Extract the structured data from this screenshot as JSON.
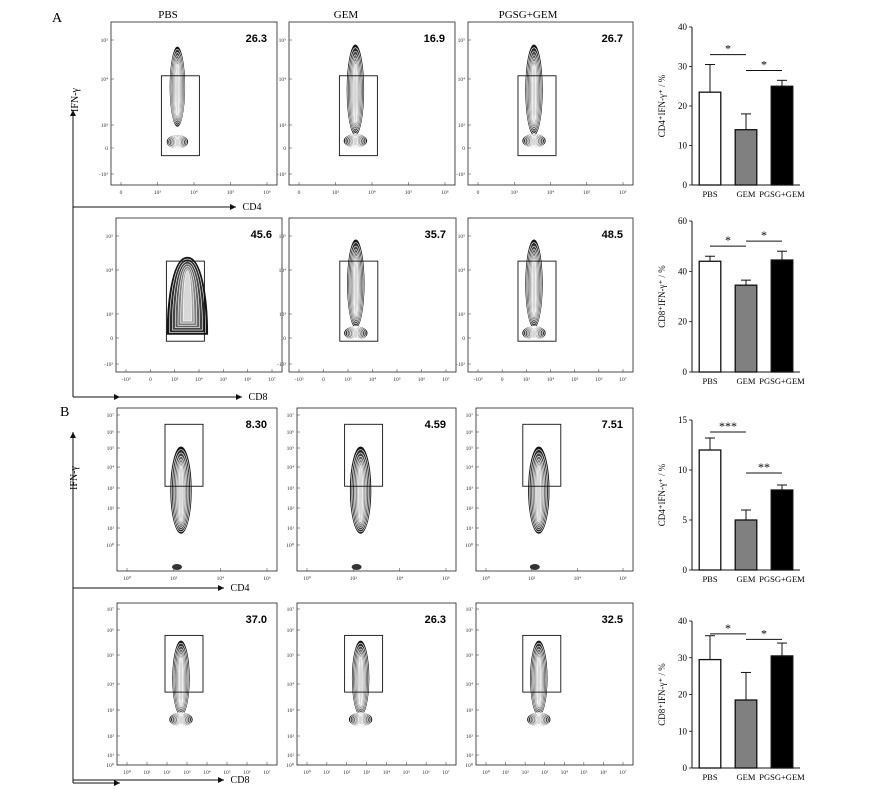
{
  "panels": [
    {
      "letter": "A",
      "columns": [
        "PBS",
        "GEM",
        "PGSG+GEM"
      ],
      "yaxis_label": "IFN-γ",
      "rows": [
        {
          "marker": "CD4",
          "y_ticks": [
            "10⁵",
            "10⁴",
            "10³",
            "0",
            "-10³"
          ],
          "x_ticks": [
            "0",
            "10³",
            "10⁴",
            "10⁵",
            "10⁶"
          ],
          "plots": [
            {
              "value": "26.3",
              "shape": "narrow"
            },
            {
              "value": "16.9",
              "shape": "column"
            },
            {
              "value": "26.7",
              "shape": "column"
            }
          ]
        },
        {
          "marker": "CD8",
          "y_ticks": [
            "10⁵",
            "10⁴",
            "10³",
            "0",
            "-10³"
          ],
          "x_ticks": [
            "-10³",
            "0",
            "10³",
            "10⁴",
            "10⁵",
            "10⁶",
            "10⁷"
          ],
          "plots": [
            {
              "value": "45.6",
              "shape": "broad"
            },
            {
              "value": "35.7",
              "shape": "column"
            },
            {
              "value": "48.5",
              "shape": "column"
            }
          ]
        }
      ]
    },
    {
      "letter": "B",
      "columns": [
        "",
        "",
        ""
      ],
      "yaxis_label": "IFN-γ",
      "rows": [
        {
          "marker": "CD4",
          "y_ticks": [
            "10⁷",
            "10⁶",
            "10⁵",
            "10⁴",
            "10³",
            "10²",
            "10¹",
            "10⁰"
          ],
          "x_ticks": [
            "10⁰",
            "10²",
            "10⁴",
            "10⁶"
          ],
          "plots": [
            {
              "value": "8.30",
              "shape": "drop"
            },
            {
              "value": "4.59",
              "shape": "drop"
            },
            {
              "value": "7.51",
              "shape": "drop"
            }
          ]
        },
        {
          "marker": "CD8",
          "y_ticks": [
            "10⁷",
            "10⁶",
            "10⁵",
            "10⁴",
            "10³",
            "10²",
            "10¹",
            "10⁰"
          ],
          "x_ticks": [
            "10⁰",
            "10¹",
            "10²",
            "10³",
            "10⁴",
            "10⁵",
            "10⁶",
            "10⁷"
          ],
          "plots": [
            {
              "value": "37.0",
              "shape": "column"
            },
            {
              "value": "26.3",
              "shape": "column"
            },
            {
              "value": "32.5",
              "shape": "column"
            }
          ]
        }
      ]
    }
  ],
  "chart_data": [
    {
      "type": "bar",
      "panel": "A",
      "categories": [
        "PBS",
        "GEM",
        "PGSG+GEM"
      ],
      "values": [
        23.5,
        14.0,
        25.0
      ],
      "errors": [
        7.0,
        4.0,
        1.5
      ],
      "bar_colors": [
        "#ffffff",
        "#808080",
        "#000000"
      ],
      "ylabel": "CD4⁺IFN-γ⁺ / %",
      "ylim": [
        0,
        40
      ],
      "yticks": [
        0,
        10,
        20,
        30,
        40
      ],
      "significance": [
        {
          "from": 0,
          "to": 1,
          "label": "*",
          "y": 33
        },
        {
          "from": 1,
          "to": 2,
          "label": "*",
          "y": 29
        }
      ]
    },
    {
      "type": "bar",
      "panel": "A",
      "categories": [
        "PBS",
        "GEM",
        "PGSG+GEM"
      ],
      "values": [
        44.0,
        34.5,
        44.5
      ],
      "errors": [
        2.0,
        2.0,
        3.5
      ],
      "bar_colors": [
        "#ffffff",
        "#808080",
        "#000000"
      ],
      "ylabel": "CD8⁺IFN-γ⁺ / %",
      "ylim": [
        0,
        60
      ],
      "yticks": [
        0,
        20,
        40,
        60
      ],
      "significance": [
        {
          "from": 0,
          "to": 1,
          "label": "*",
          "y": 50
        },
        {
          "from": 1,
          "to": 2,
          "label": "*",
          "y": 52
        }
      ]
    },
    {
      "type": "bar",
      "panel": "B",
      "categories": [
        "PBS",
        "GEM",
        "PGSG+GEM"
      ],
      "values": [
        12.0,
        5.0,
        8.0
      ],
      "errors": [
        1.2,
        1.0,
        0.5
      ],
      "bar_colors": [
        "#ffffff",
        "#808080",
        "#000000"
      ],
      "ylabel": "CD4⁺IFN-γ⁺ / %",
      "ylim": [
        0,
        15
      ],
      "yticks": [
        0,
        5,
        10,
        15
      ],
      "significance": [
        {
          "from": 0,
          "to": 1,
          "label": "***",
          "y": 13.8
        },
        {
          "from": 1,
          "to": 2,
          "label": "**",
          "y": 9.7
        }
      ]
    },
    {
      "type": "bar",
      "panel": "B",
      "categories": [
        "PBS",
        "GEM",
        "PGSG+GEM"
      ],
      "values": [
        29.5,
        18.5,
        30.5
      ],
      "errors": [
        6.5,
        7.5,
        3.5
      ],
      "bar_colors": [
        "#ffffff",
        "#808080",
        "#000000"
      ],
      "ylabel": "CD8⁺IFN-γ⁺ / %",
      "ylim": [
        0,
        40
      ],
      "yticks": [
        0,
        10,
        20,
        30,
        40
      ],
      "significance": [
        {
          "from": 0,
          "to": 1,
          "label": "*",
          "y": 36.5
        },
        {
          "from": 1,
          "to": 2,
          "label": "*",
          "y": 35
        }
      ]
    }
  ]
}
